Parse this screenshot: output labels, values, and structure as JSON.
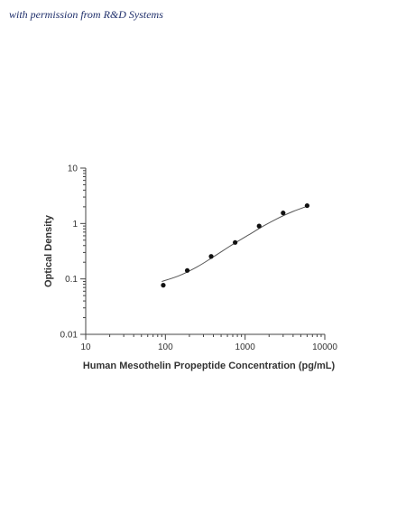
{
  "credit": "with permission from R&D Systems",
  "chart_data": {
    "type": "scatter",
    "title": "",
    "xlabel": "Human Mesothelin Propeptide Concentration (pg/mL)",
    "ylabel": "Optical Density",
    "x_scale": "log",
    "y_scale": "log",
    "xlim": [
      10,
      10000
    ],
    "ylim": [
      0.01,
      10
    ],
    "x_tick_labels": [
      "10",
      "100",
      "1000",
      "10000"
    ],
    "y_tick_labels": [
      "10",
      "1",
      "0.1",
      "0.01"
    ],
    "grid": false,
    "legend": "none",
    "series": [
      {
        "kind": "points",
        "x": [
          94,
          188,
          375,
          750,
          1500,
          3000,
          6000
        ],
        "y": [
          0.077,
          0.142,
          0.255,
          0.455,
          0.9,
          1.55,
          2.1
        ]
      },
      {
        "kind": "fitted curve",
        "x": [
          90,
          150,
          250,
          400,
          700,
          1100,
          1700,
          2600,
          4000,
          6000
        ],
        "y": [
          0.09,
          0.115,
          0.165,
          0.25,
          0.42,
          0.62,
          0.9,
          1.25,
          1.65,
          2.05
        ]
      }
    ],
    "colors": {
      "points": "#111111",
      "curve": "#555555",
      "axis": "#444444"
    }
  }
}
